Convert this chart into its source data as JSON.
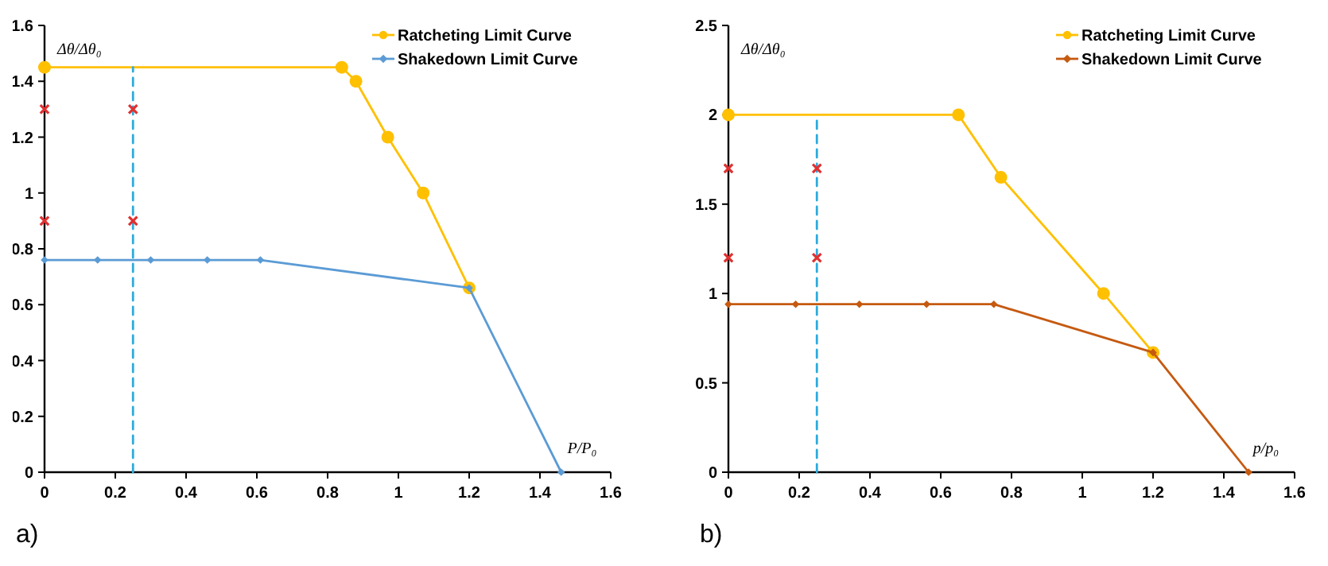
{
  "chart_data": [
    {
      "type": "line",
      "xlabel": "P/P₀",
      "ylabel": "Δθ/Δθ₀",
      "xlim": [
        0,
        1.6
      ],
      "ylim": [
        0,
        1.6
      ],
      "xticks": [
        0,
        0.2,
        0.4,
        0.6,
        0.8,
        1,
        1.2,
        1.4,
        1.6
      ],
      "yticks": [
        0,
        0.2,
        0.4,
        0.6,
        0.8,
        1,
        1.2,
        1.4,
        1.6
      ],
      "grid": false,
      "legend": "top right",
      "annotations": [
        "a)"
      ],
      "series": [
        {
          "name": "Ratcheting Limit Curve",
          "color": "#ffc000",
          "marker": "circle",
          "x": [
            0,
            0.84,
            0.88,
            0.97,
            1.07,
            1.2
          ],
          "values": [
            1.45,
            1.45,
            1.4,
            1.2,
            1.0,
            0.66
          ]
        },
        {
          "name": "Shakedown Limit Curve",
          "color": "#5b9bd5",
          "marker": "diamond",
          "x": [
            0,
            0.15,
            0.3,
            0.46,
            0.61,
            1.2,
            1.46
          ],
          "values": [
            0.76,
            0.76,
            0.76,
            0.76,
            0.76,
            0.66,
            0
          ]
        },
        {
          "type": "line",
          "color": "#2eaadc",
          "line_style": "dashed",
          "marker": "none",
          "x": [
            0.25,
            0.25
          ],
          "values": [
            0,
            1.45
          ]
        },
        {
          "type": "scatter",
          "color": "#e03030",
          "marker": "cross",
          "x": [
            0,
            0,
            0.25,
            0.25
          ],
          "values": [
            1.3,
            0.9,
            1.3,
            0.9
          ]
        }
      ]
    },
    {
      "type": "line",
      "xlabel": "p/p₀",
      "ylabel": "Δθ/Δθ₀",
      "xlim": [
        0,
        1.6
      ],
      "ylim": [
        0,
        2.5
      ],
      "xticks": [
        0,
        0.2,
        0.4,
        0.6,
        0.8,
        1,
        1.2,
        1.4,
        1.6
      ],
      "yticks": [
        0,
        0.5,
        1,
        1.5,
        2,
        2.5
      ],
      "grid": false,
      "legend": "top right",
      "annotations": [
        "b)"
      ],
      "series": [
        {
          "name": "Ratcheting Limit Curve",
          "color": "#ffc000",
          "marker": "circle",
          "x": [
            0,
            0.65,
            0.77,
            1.06,
            1.2
          ],
          "values": [
            2,
            2,
            1.65,
            1.0,
            0.67
          ]
        },
        {
          "name": "Shakedown Limit Curve",
          "color": "#c55a11",
          "marker": "diamond",
          "x": [
            0,
            0.19,
            0.37,
            0.56,
            0.75,
            1.2,
            1.47
          ],
          "values": [
            0.94,
            0.94,
            0.94,
            0.94,
            0.94,
            0.67,
            0
          ]
        },
        {
          "type": "line",
          "color": "#2eaadc",
          "line_style": "dashed",
          "marker": "none",
          "x": [
            0.25,
            0.25
          ],
          "values": [
            0,
            2
          ]
        },
        {
          "type": "scatter",
          "color": "#e03030",
          "marker": "cross",
          "x": [
            0,
            0,
            0.25,
            0.25
          ],
          "values": [
            1.7,
            1.2,
            1.7,
            1.2
          ]
        }
      ]
    }
  ]
}
